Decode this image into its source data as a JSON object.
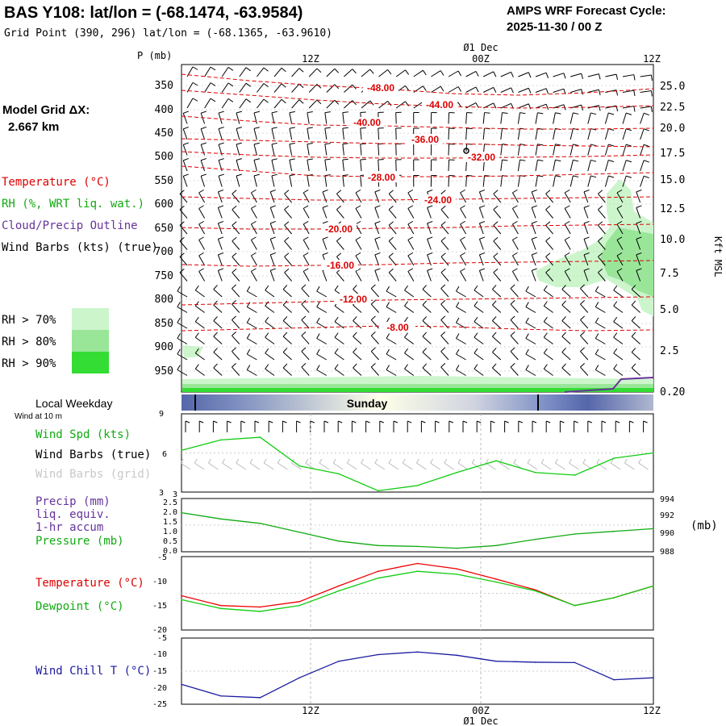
{
  "header": {
    "title": "BAS Y108:  lat/lon = (-68.1474, -63.9584)",
    "gridpoint": "Grid Point (390, 296) lat/lon = (-68.1365, -63.9610)",
    "cycle_title": "AMPS WRF Forecast Cycle:",
    "cycle_value": "2025-11-30 / 00  Z"
  },
  "model_grid": {
    "label": "Model Grid ΔX:",
    "value": "2.667 km"
  },
  "legend": {
    "temperature": "Temperature (°C)",
    "rh": "RH (%, WRT liq. wat.)",
    "cloud": "Cloud/Precip Outline",
    "wind_barbs": "Wind Barbs (kts) (true)",
    "rh70": "RH > 70%",
    "rh80": "RH > 80%",
    "rh90": "RH > 90%",
    "colors": {
      "rh70": "#ccf5cc",
      "rh80": "#99e699",
      "rh90": "#33dd33",
      "temp": "#dd0000",
      "cloud": "#663399"
    }
  },
  "time_axis": {
    "top_labels": [
      "12Z",
      "00Z",
      "12Z"
    ],
    "date_label": "Ø1 Dec",
    "bottom_labels": [
      "12Z",
      "00Z",
      "12Z"
    ],
    "bottom_date": "Ø1 Dec"
  },
  "profile": {
    "p_unit": "P (mb)",
    "pressure_ticks": [
      "350",
      "400",
      "450",
      "500",
      "550",
      "600",
      "650",
      "700",
      "750",
      "800",
      "850",
      "900",
      "950"
    ],
    "height_ticks": [
      "25.0",
      "22.5",
      "20.0",
      "17.5",
      "15.0",
      "12.5",
      "10.0",
      "7.5",
      "5.0",
      "2.5",
      "0.20"
    ],
    "height_unit": "Kft MSL",
    "isotherm_labels": [
      "-48.00",
      "-44.00",
      "-40.00",
      "-36.00",
      "-32.00",
      "-28.00",
      "-24.00",
      "-20.00",
      "-16.00",
      "-12.00",
      "-8.00"
    ]
  },
  "weekday": {
    "label": "Local Weekday",
    "day": "Sunday"
  },
  "wind_panel": {
    "subtitle": "Wind at 10 m",
    "label_spd": "Wind Spd (kts)",
    "label_barbs": "Wind Barbs (true)",
    "label_grid": "Wind Barbs (grid)",
    "y_ticks": [
      "9",
      "6",
      "3"
    ]
  },
  "precip_panel": {
    "label_precip": "Precip (mm)",
    "label_liq": "liq. equiv.",
    "label_accum": "1-hr accum",
    "label_pressure": "Pressure (mb)",
    "left_ticks": [
      "3",
      "2.5",
      "2.0",
      "1.5",
      "1.0",
      "0.5",
      "0.0"
    ],
    "right_ticks": [
      "994",
      "992",
      "990",
      "988"
    ],
    "right_unit": "(mb)"
  },
  "temp_panel": {
    "label_temp": "Temperature (°C)",
    "label_dew": "Dewpoint (°C)",
    "y_ticks": [
      "-5",
      "-10",
      "-15",
      "-20"
    ]
  },
  "chill_panel": {
    "label": "Wind Chill T (°C)",
    "y_ticks": [
      "-5",
      "-10",
      "-15",
      "-20",
      "-25"
    ]
  },
  "chart_data": [
    {
      "type": "line",
      "title": "Wind at 10 m",
      "x_hours": [
        0,
        3,
        6,
        9,
        12,
        15,
        18,
        21,
        24,
        27,
        30,
        33,
        36
      ],
      "series": [
        {
          "name": "Wind Spd (kts)",
          "values": [
            6.2,
            7.0,
            7.2,
            5.0,
            4.4,
            3.1,
            3.5,
            4.5,
            5.4,
            4.5,
            4.3,
            5.6,
            6.0
          ]
        }
      ],
      "ylim": [
        3,
        9
      ]
    },
    {
      "type": "line",
      "title": "Pressure (mb)",
      "x_hours": [
        0,
        3,
        6,
        9,
        12,
        15,
        18,
        21,
        24,
        27,
        30,
        33,
        36
      ],
      "series": [
        {
          "name": "Pressure (mb)",
          "values": [
            992.4,
            991.7,
            991.2,
            990.2,
            989.2,
            988.7,
            988.6,
            988.4,
            988.7,
            989.4,
            990.0,
            990.3,
            990.6
          ]
        }
      ],
      "ylim": [
        988,
        994
      ]
    },
    {
      "type": "line",
      "title": "Temperature / Dewpoint",
      "x_hours": [
        0,
        3,
        6,
        9,
        12,
        15,
        18,
        21,
        24,
        27,
        30,
        33,
        36
      ],
      "series": [
        {
          "name": "Temperature (°C)",
          "values": [
            -13.0,
            -15.0,
            -15.3,
            -14.2,
            -11.0,
            -8.0,
            -6.4,
            -7.5,
            -9.6,
            -11.8,
            -15.0,
            -13.4,
            -11.0
          ]
        },
        {
          "name": "Dewpoint (°C)",
          "values": [
            -13.8,
            -15.6,
            -16.2,
            -15.0,
            -12.0,
            -9.4,
            -8.0,
            -8.6,
            -10.2,
            -12.0,
            -15.0,
            -13.4,
            -11.0
          ]
        }
      ],
      "ylim": [
        -20,
        -5
      ]
    },
    {
      "type": "line",
      "title": "Wind Chill T (°C)",
      "x_hours": [
        0,
        3,
        6,
        9,
        12,
        15,
        18,
        21,
        24,
        27,
        30,
        33,
        36
      ],
      "series": [
        {
          "name": "Wind Chill T (°C)",
          "values": [
            -19,
            -22.5,
            -23,
            -17,
            -12,
            -10,
            -9.2,
            -10.2,
            -12,
            -12.3,
            -12.4,
            -17.6,
            -17
          ]
        }
      ],
      "ylim": [
        -25,
        -5
      ]
    }
  ]
}
